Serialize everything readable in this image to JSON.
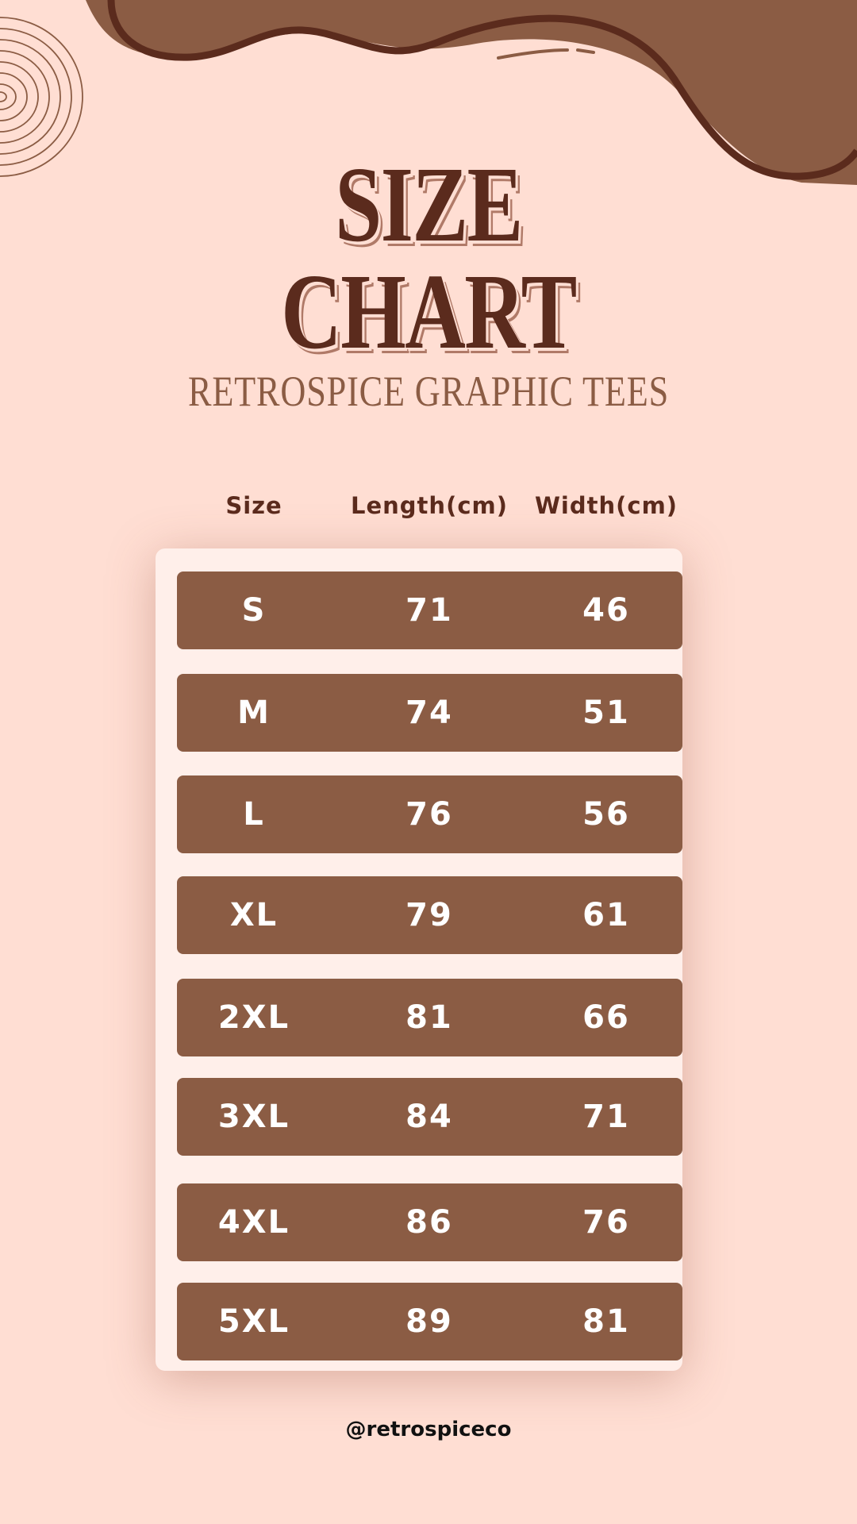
{
  "title_line1": "SIZE",
  "title_line2": "CHART",
  "subtitle": "RETROSPICE GRAPHIC TEES",
  "table": {
    "headers": [
      "Size",
      "Length(cm)",
      "Width(cm)"
    ],
    "rows": [
      [
        "S",
        "71",
        "46"
      ],
      [
        "M",
        "74",
        "51"
      ],
      [
        "L",
        "76",
        "56"
      ],
      [
        "XL",
        "79",
        "61"
      ],
      [
        "2XL",
        "81",
        "66"
      ],
      [
        "3XL",
        "84",
        "71"
      ],
      [
        "4XL",
        "86",
        "76"
      ],
      [
        "5XL",
        "89",
        "81"
      ]
    ]
  },
  "footer": "@retrospiceco",
  "colors": {
    "background": "#ffded3",
    "accent": "#8b5c44",
    "dark": "#5b2b1d",
    "card": "#ffefea"
  }
}
